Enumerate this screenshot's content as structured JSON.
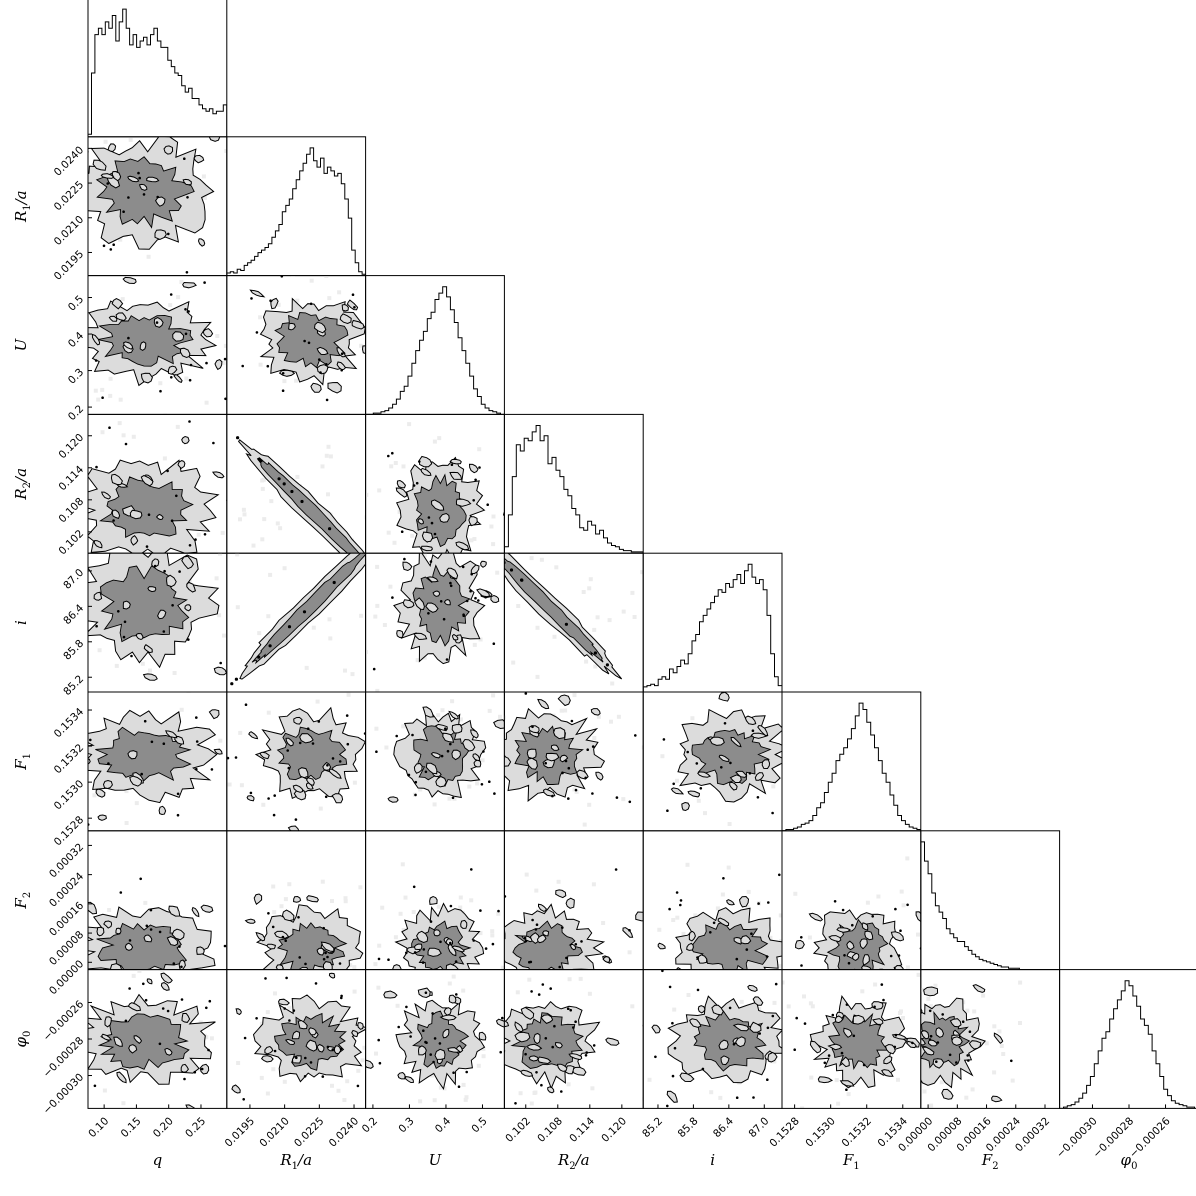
{
  "chart_data": {
    "type": "corner",
    "parameters": [
      {
        "label_main": "q",
        "label_sub": "",
        "label_tail": "",
        "range": [
          0.075,
          0.29
        ],
        "ticks": [
          0.1,
          0.15,
          0.2,
          0.25
        ],
        "tick_labels": [
          "0.10",
          "0.15",
          "0.20",
          "0.25"
        ]
      },
      {
        "label_main": "R",
        "label_sub": "1",
        "label_tail": "/a",
        "range": [
          0.0185,
          0.0245
        ],
        "ticks": [
          0.0195,
          0.021,
          0.0225,
          0.024
        ],
        "tick_labels": [
          "0.0195",
          "0.0210",
          "0.0225",
          "0.0240"
        ]
      },
      {
        "label_main": "U",
        "label_sub": "",
        "label_tail": "",
        "range": [
          0.18,
          0.56
        ],
        "ticks": [
          0.2,
          0.3,
          0.4,
          0.5
        ],
        "tick_labels": [
          "0.2",
          "0.3",
          "0.4",
          "0.5"
        ]
      },
      {
        "label_main": "R",
        "label_sub": "2",
        "label_tail": "/a",
        "range": [
          0.098,
          0.124
        ],
        "ticks": [
          0.102,
          0.108,
          0.114,
          0.12
        ],
        "tick_labels": [
          "0.102",
          "0.108",
          "0.114",
          "0.120"
        ]
      },
      {
        "label_main": "i",
        "label_sub": "",
        "label_tail": "",
        "range": [
          84.95,
          87.3
        ],
        "ticks": [
          85.2,
          85.8,
          86.4,
          87.0
        ],
        "tick_labels": [
          "85.2",
          "85.8",
          "86.4",
          "87.0"
        ]
      },
      {
        "label_main": "F",
        "label_sub": "1",
        "label_tail": "",
        "range": [
          0.15273,
          0.1535
        ],
        "ticks": [
          0.1528,
          0.153,
          0.1532,
          0.1534
        ],
        "tick_labels": [
          "0.1528",
          "0.1530",
          "0.1532",
          "0.1534"
        ]
      },
      {
        "label_main": "F",
        "label_sub": "2",
        "label_tail": "",
        "range": [
          -2e-05,
          0.00036
        ],
        "ticks": [
          0.0,
          8e-05,
          0.00016,
          0.00024,
          0.00032
        ],
        "tick_labels": [
          "0.00000",
          "0.00008",
          "0.00016",
          "0.00024",
          "0.00032"
        ]
      },
      {
        "label_main": "φ",
        "label_sub": "0",
        "label_tail": "",
        "range": [
          -0.000318,
          -0.000242
        ],
        "ticks": [
          -0.0003,
          -0.00028,
          -0.00026,
          -0.00024
        ],
        "tick_labels": [
          "−0.00030",
          "−0.00028",
          "−0.00026",
          "−0.00024"
        ]
      }
    ],
    "histograms": [
      {
        "param": 0,
        "bin_edges_range": [
          0.075,
          0.29
        ],
        "counts": [
          0.02,
          0.5,
          0.8,
          0.85,
          0.8,
          0.9,
          0.85,
          0.95,
          0.75,
          0.9,
          1.0,
          0.85,
          0.72,
          0.8,
          0.7,
          0.75,
          0.78,
          0.72,
          0.8,
          0.85,
          0.75,
          0.7,
          0.7,
          0.6,
          0.55,
          0.5,
          0.48,
          0.4,
          0.35,
          0.38,
          0.3,
          0.3,
          0.25,
          0.22,
          0.2,
          0.22,
          0.18,
          0.2,
          0.2,
          0.25
        ]
      },
      {
        "param": 1,
        "bin_edges_range": [
          0.0185,
          0.0245
        ],
        "counts": [
          0.02,
          0.03,
          0.02,
          0.05,
          0.04,
          0.08,
          0.1,
          0.12,
          0.15,
          0.18,
          0.2,
          0.22,
          0.25,
          0.3,
          0.35,
          0.4,
          0.5,
          0.55,
          0.6,
          0.68,
          0.75,
          0.82,
          0.88,
          0.95,
          1.0,
          0.9,
          0.85,
          0.92,
          0.8,
          0.85,
          0.82,
          0.78,
          0.8,
          0.72,
          0.6,
          0.45,
          0.2,
          0.1,
          0.03,
          0.01
        ]
      },
      {
        "param": 2,
        "bin_edges_range": [
          0.18,
          0.56
        ],
        "counts": [
          0.0,
          0.0,
          0.01,
          0.01,
          0.02,
          0.03,
          0.05,
          0.08,
          0.12,
          0.18,
          0.22,
          0.3,
          0.4,
          0.5,
          0.58,
          0.65,
          0.75,
          0.8,
          0.9,
          0.95,
          1.0,
          0.92,
          0.82,
          0.72,
          0.6,
          0.5,
          0.4,
          0.3,
          0.2,
          0.14,
          0.08,
          0.05,
          0.03,
          0.02,
          0.01,
          0.0
        ]
      },
      {
        "param": 3,
        "bin_edges_range": [
          0.098,
          0.124
        ],
        "counts": [
          0.05,
          0.3,
          0.6,
          0.85,
          0.8,
          0.9,
          0.88,
          0.95,
          1.0,
          0.88,
          0.92,
          0.7,
          0.75,
          0.65,
          0.6,
          0.5,
          0.45,
          0.35,
          0.3,
          0.2,
          0.18,
          0.25,
          0.22,
          0.15,
          0.18,
          0.12,
          0.08,
          0.06,
          0.05,
          0.03,
          0.02,
          0.02,
          0.01,
          0.01,
          0.01
        ]
      },
      {
        "param": 4,
        "bin_edges_range": [
          84.95,
          87.3
        ],
        "counts": [
          0.04,
          0.05,
          0.06,
          0.05,
          0.1,
          0.12,
          0.1,
          0.18,
          0.15,
          0.2,
          0.25,
          0.22,
          0.3,
          0.4,
          0.45,
          0.55,
          0.6,
          0.65,
          0.7,
          0.75,
          0.8,
          0.78,
          0.85,
          0.82,
          0.88,
          0.92,
          0.85,
          0.95,
          1.0,
          0.9,
          0.85,
          0.88,
          0.8,
          0.6,
          0.3,
          0.12,
          0.05
        ]
      },
      {
        "param": 5,
        "bin_edges_range": [
          0.15273,
          0.1535
        ],
        "counts": [
          0.0,
          0.01,
          0.01,
          0.02,
          0.03,
          0.05,
          0.06,
          0.08,
          0.12,
          0.18,
          0.22,
          0.3,
          0.38,
          0.45,
          0.55,
          0.6,
          0.65,
          0.72,
          0.8,
          0.9,
          1.0,
          0.95,
          0.85,
          0.75,
          0.65,
          0.55,
          0.45,
          0.38,
          0.28,
          0.2,
          0.12,
          0.08,
          0.05,
          0.03,
          0.02,
          0.01
        ]
      },
      {
        "param": 6,
        "bin_edges_range": [
          -2e-05,
          0.00036
        ],
        "counts": [
          1.0,
          0.85,
          0.75,
          0.6,
          0.5,
          0.45,
          0.4,
          0.32,
          0.28,
          0.25,
          0.22,
          0.22,
          0.18,
          0.15,
          0.12,
          0.1,
          0.08,
          0.07,
          0.06,
          0.05,
          0.04,
          0.03,
          0.02,
          0.02,
          0.01,
          0.01,
          0.01,
          0.0,
          0.0,
          0.0,
          0.0,
          0.0,
          0.0,
          0.0,
          0.0,
          0.0,
          0.0,
          0.0
        ]
      },
      {
        "param": 7,
        "bin_edges_range": [
          -0.000318,
          -0.000242
        ],
        "counts": [
          0.0,
          0.01,
          0.02,
          0.03,
          0.05,
          0.08,
          0.12,
          0.18,
          0.25,
          0.35,
          0.45,
          0.55,
          0.6,
          0.7,
          0.78,
          0.85,
          0.92,
          1.0,
          0.96,
          0.88,
          0.8,
          0.7,
          0.65,
          0.58,
          0.45,
          0.35,
          0.25,
          0.15,
          0.1,
          0.06,
          0.04,
          0.03,
          0.02,
          0.01,
          0.01,
          0.0
        ]
      }
    ],
    "joint_summary": [
      {
        "x": 1,
        "y": 3,
        "relation": "anticorrelated"
      },
      {
        "x": 1,
        "y": 4,
        "relation": "correlated"
      },
      {
        "x": 3,
        "y": 4,
        "relation": "anticorrelated"
      }
    ],
    "axis_label_suffix_sep": "",
    "grid": false,
    "legend": "none"
  }
}
